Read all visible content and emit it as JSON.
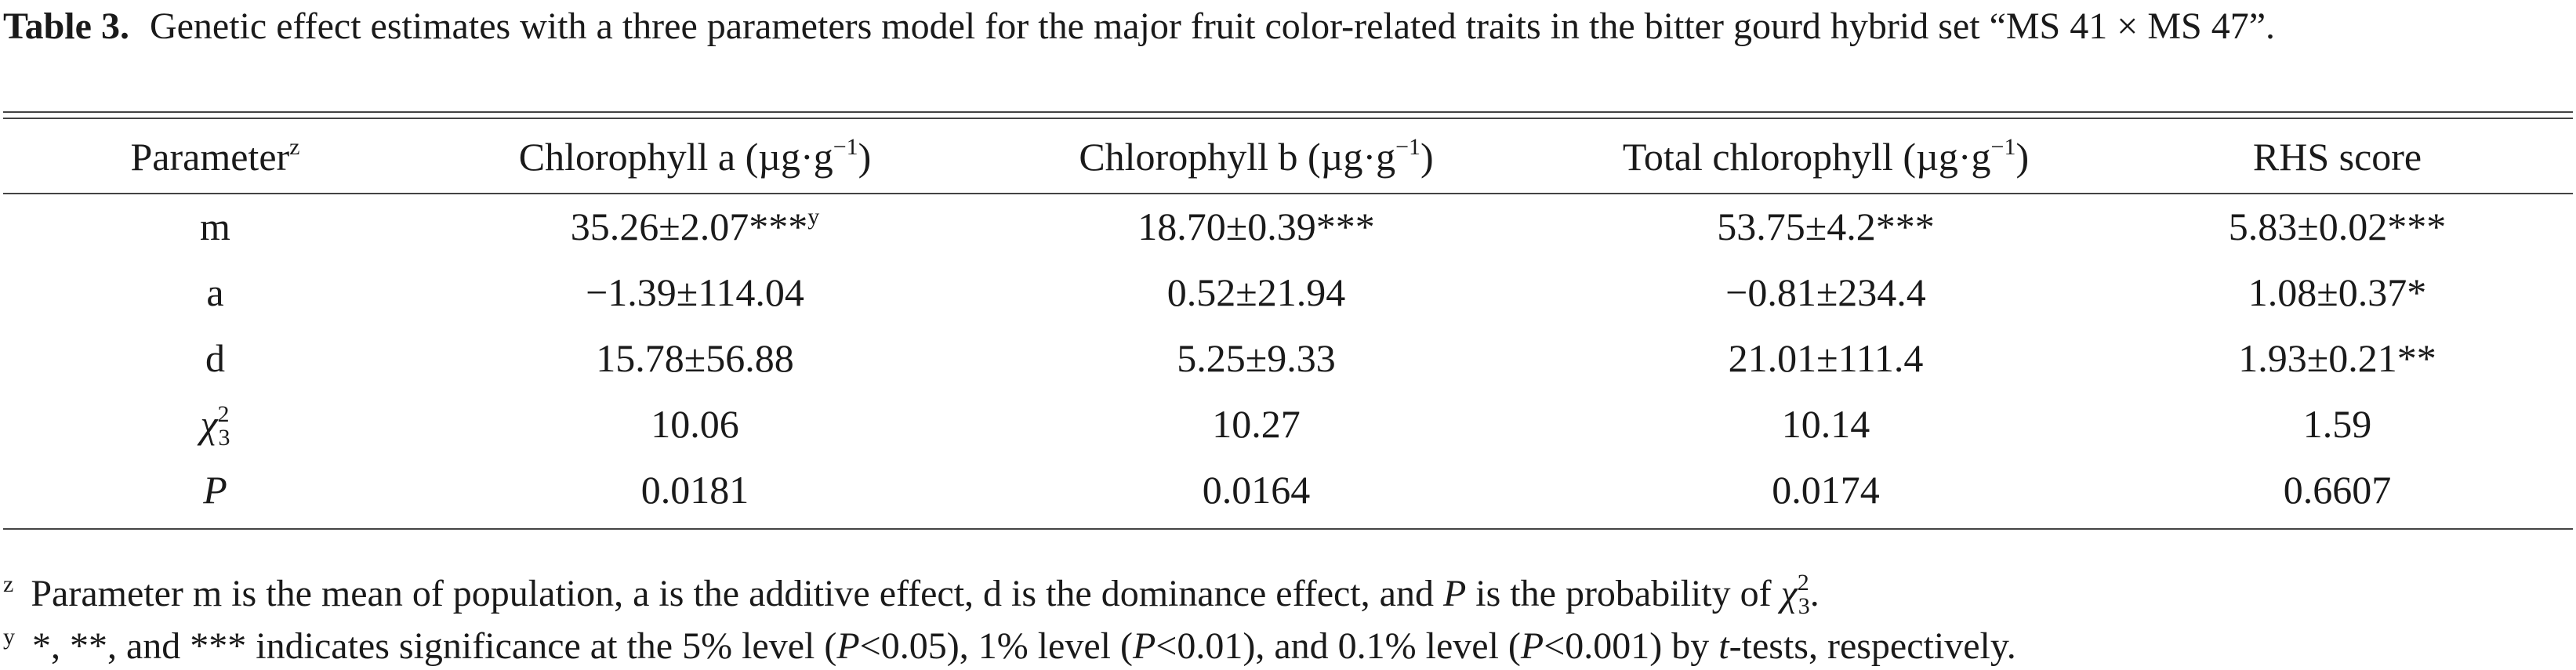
{
  "caption": {
    "label": "Table 3.",
    "text": "Genetic effect estimates with a three parameters model for the major fruit color-related traits in the bitter gourd hybrid set “MS 41 × MS 47”."
  },
  "table": {
    "header": [
      {
        "text": "Parameter",
        "sup": "z"
      },
      {
        "text": "Chlorophyll a (µg·g",
        "sup": "−1",
        "tail": ")"
      },
      {
        "text": "Chlorophyll b (µg·g",
        "sup": "−1",
        "tail": ")"
      },
      {
        "text": "Total chlorophyll (µg·g",
        "sup": "−1",
        "tail": ")"
      },
      {
        "text": "RHS score"
      }
    ],
    "rows": [
      {
        "label": {
          "text": "m"
        },
        "cells": [
          {
            "text": "35.26±2.07***",
            "sup": "y"
          },
          {
            "text": "18.70±0.39***"
          },
          {
            "text": "53.75±4.2***"
          },
          {
            "text": "5.83±0.02***"
          }
        ]
      },
      {
        "label": {
          "text": "a"
        },
        "cells": [
          {
            "text": "−1.39±114.04"
          },
          {
            "text": "0.52±21.94"
          },
          {
            "text": "−0.81±234.4"
          },
          {
            "text": "1.08±0.37*"
          }
        ]
      },
      {
        "label": {
          "text": "d"
        },
        "cells": [
          {
            "text": "15.78±56.88"
          },
          {
            "text": "5.25±9.33"
          },
          {
            "text": "21.01±111.4"
          },
          {
            "text": "1.93±0.21**"
          }
        ]
      },
      {
        "label": {
          "text": "χ",
          "sup": "2",
          "sub": "3"
        },
        "cells": [
          {
            "text": "10.06"
          },
          {
            "text": "10.27"
          },
          {
            "text": "10.14"
          },
          {
            "text": "1.59"
          }
        ]
      },
      {
        "label": {
          "text": "P"
        },
        "cells": [
          {
            "text": "0.0181"
          },
          {
            "text": "0.0164"
          },
          {
            "text": "0.0174"
          },
          {
            "text": "0.6607"
          }
        ]
      }
    ]
  },
  "footnotes": [
    {
      "mark": "z",
      "parts": [
        "Parameter m is the mean of population, a is the additive effect, d is the dominance effect, and ",
        "P",
        " is the probability of ",
        "χ",
        "2",
        "3",
        "."
      ]
    },
    {
      "mark": "y",
      "parts": [
        "*, **, and *** indicates significance at the 5% level (",
        "P",
        "<0.05), 1% level (",
        "P",
        "<0.01), and 0.1% level (",
        "P",
        "<0.001) by ",
        "t",
        "-tests, respectively."
      ]
    }
  ]
}
